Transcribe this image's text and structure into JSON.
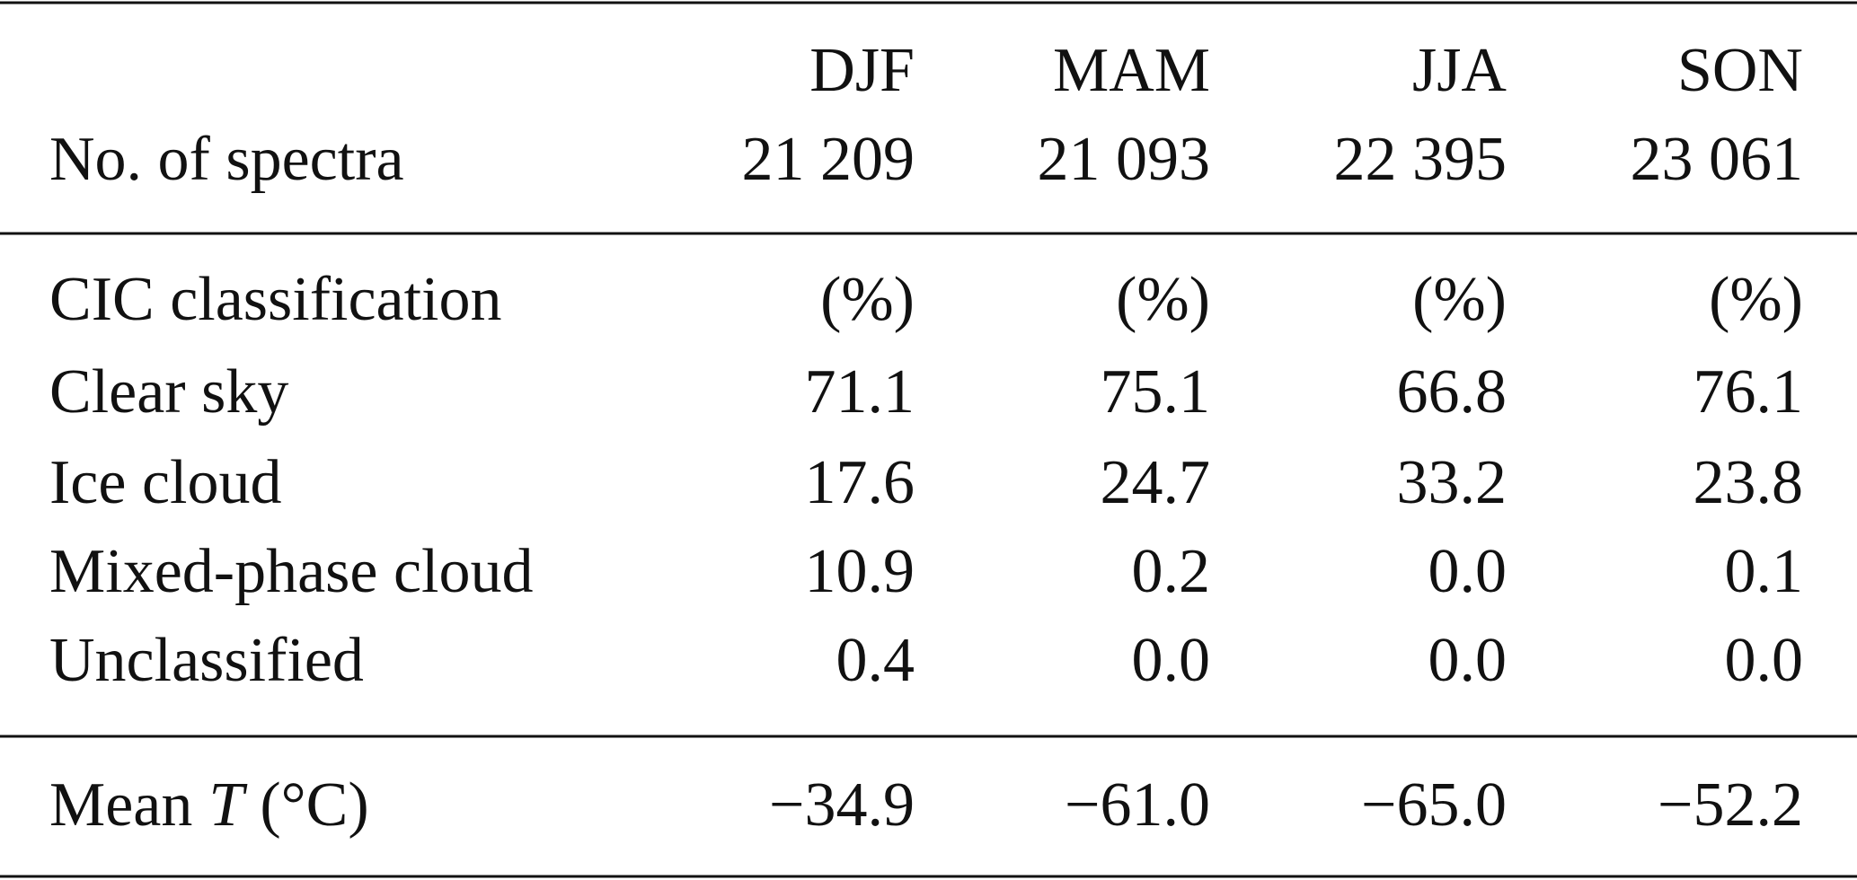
{
  "header": {
    "seasons": [
      "DJF",
      "MAM",
      "JJA",
      "SON"
    ],
    "label": "No. of spectra",
    "counts": [
      "21 209",
      "21 093",
      "22 395",
      "23 061"
    ]
  },
  "rows": [
    {
      "label": "CIC classification",
      "values": [
        "(%)",
        "(%)",
        "(%)",
        "(%)"
      ]
    },
    {
      "label": "Clear sky",
      "values": [
        "71.1",
        "75.1",
        "66.8",
        "76.1"
      ]
    },
    {
      "label": "Ice cloud",
      "values": [
        "17.6",
        "24.7",
        "33.2",
        "23.8"
      ]
    },
    {
      "label": "Mixed-phase cloud",
      "values": [
        "10.9",
        "0.2",
        "0.0",
        "0.1"
      ]
    },
    {
      "label": "Unclassified",
      "values": [
        "0.4",
        "0.0",
        "0.0",
        "0.0"
      ]
    }
  ],
  "mean_t": {
    "label_parts": [
      "Mean",
      "T",
      "(°C)"
    ],
    "values": [
      "−34.9",
      "−61.0",
      "−65.0",
      "−52.2"
    ]
  }
}
